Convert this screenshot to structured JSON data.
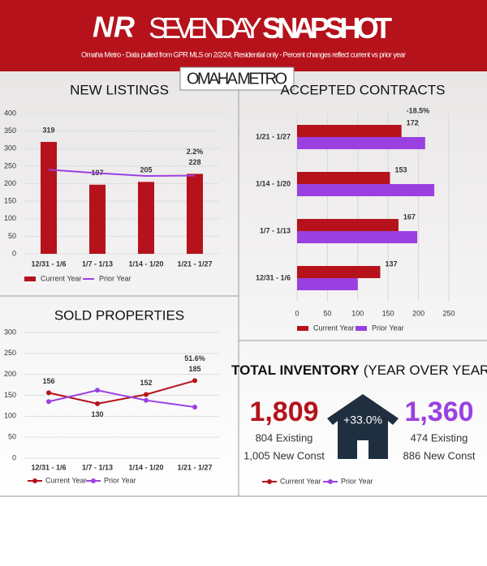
{
  "header": {
    "logo": "NR",
    "title_light": "SEVEN DAY",
    "title_bold": "SNAPSHOT",
    "subtitle": "Omaha Metro - Data pulled from GPR MLS on 2/2/24; Residential only - Percent changes reflect current vs prior year",
    "badge": "OMAHA METRO"
  },
  "chart_data": [
    {
      "type": "bar",
      "title": "NEW LISTINGS",
      "categories": [
        "12/31 - 1/6",
        "1/7 - 1/13",
        "1/14 - 1/20",
        "1/21 - 1/27"
      ],
      "series": [
        {
          "name": "Current Year",
          "color": "#b5121b",
          "values": [
            319,
            197,
            205,
            228
          ],
          "data_labels": true
        },
        {
          "name": "Prior Year",
          "color": "#9b40e0",
          "type": "line",
          "values": [
            240,
            230,
            222,
            223
          ]
        }
      ],
      "annotation": "2.2%",
      "ylim": [
        0,
        400
      ],
      "yticks": [
        0,
        50,
        100,
        150,
        200,
        250,
        300,
        350,
        400
      ],
      "grid": true
    },
    {
      "type": "hbar",
      "title": "ACCEPTED CONTRACTS",
      "categories": [
        "1/21 - 1/27",
        "1/14 - 1/20",
        "1/7 - 1/13",
        "12/31 - 1/6"
      ],
      "series": [
        {
          "name": "Current Year",
          "color": "#b5121b",
          "values": [
            172,
            153,
            167,
            137
          ],
          "data_labels": true
        },
        {
          "name": "Prior Year",
          "color": "#9b40e0",
          "values": [
            211,
            226,
            198,
            100
          ]
        }
      ],
      "annotation": "-18.5%",
      "xlim": [
        0,
        250
      ],
      "xticks": [
        0,
        50,
        100,
        150,
        200,
        250
      ],
      "grid": true
    },
    {
      "type": "line",
      "title": "SOLD PROPERTIES",
      "categories": [
        "12/31 - 1/6",
        "1/7 - 1/13",
        "1/14 - 1/20",
        "1/21 - 1/27"
      ],
      "series": [
        {
          "name": "Current Year",
          "color": "#b5121b",
          "values": [
            156,
            130,
            152,
            185
          ],
          "data_labels": true
        },
        {
          "name": "Prior Year",
          "color": "#9b40e0",
          "values": [
            135,
            162,
            138,
            122
          ]
        }
      ],
      "annotation": "51.6%",
      "markers": true,
      "ylim": [
        0,
        300
      ],
      "yticks": [
        0,
        50,
        100,
        150,
        200,
        250,
        300
      ],
      "grid": true
    }
  ],
  "inventory": {
    "title": "TOTAL INVENTORY",
    "subtitle": "(YEAR OVER YEAR)",
    "change": "+33.0%",
    "current": {
      "total": "1,809",
      "existing": "804 Existing",
      "new_const": "1,005 New Const",
      "color": "#b5121b"
    },
    "prior": {
      "total": "1,360",
      "existing": "474 Existing",
      "new_const": "886 New Const",
      "color": "#9b40e0"
    },
    "legend": [
      "Current Year",
      "Prior Year"
    ]
  }
}
